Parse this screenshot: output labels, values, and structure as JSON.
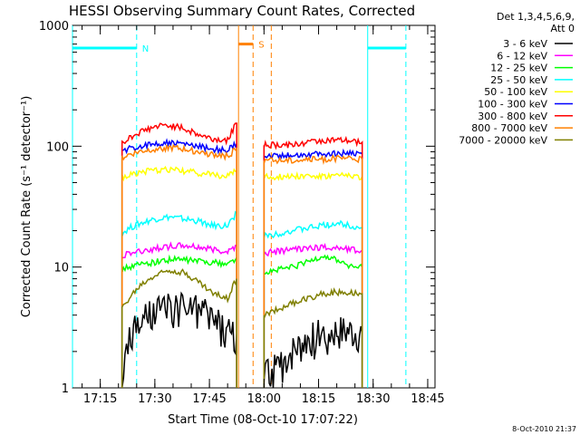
{
  "chart_data": {
    "type": "line",
    "title": "HESSI Observing Summary Count Rates, Corrected",
    "xlabel": "Start Time (08-Oct-10 17:07:22)",
    "ylabel": "Corrected Count Rate (s⁻¹ detector⁻¹)",
    "yscale": "log",
    "ylim": [
      1,
      1000
    ],
    "xlim": [
      "17:07:22",
      "18:47:00"
    ],
    "x_ticks": [
      "17:15",
      "17:30",
      "17:45",
      "18:00",
      "18:15",
      "18:30",
      "18:45"
    ],
    "y_ticks": [
      "1",
      "10",
      "100",
      "1000"
    ],
    "legend_title": [
      "Det 1,3,4,5,6,9,",
      "Att 0"
    ],
    "legend_position": "right",
    "series": [
      {
        "name": "3 - 6 keV",
        "color": "#000000",
        "segments": [
          {
            "x": [
              "17:21:00",
              "17:23:00",
              "17:26:00",
              "17:30:00",
              "17:34:00",
              "17:38:00",
              "17:42:00",
              "17:46:00",
              "17:50:00",
              "17:52:30"
            ],
            "y": [
              1.0,
              2.5,
              3.5,
              4.2,
              4.5,
              4.6,
              4.4,
              3.8,
              3.0,
              2.8
            ]
          },
          {
            "x": [
              "18:00:00",
              "18:04:00",
              "18:08:00",
              "18:12:00",
              "18:16:00",
              "18:20:00",
              "18:24:00",
              "18:27:00"
            ],
            "y": [
              1.2,
              1.5,
              2.0,
              2.5,
              2.8,
              2.9,
              2.9,
              2.8
            ]
          }
        ]
      },
      {
        "name": "6 - 12 keV",
        "color": "#ff00ff",
        "segments": [
          {
            "x": [
              "17:21:00",
              "17:23:00",
              "17:26:00",
              "17:30:00",
              "17:34:00",
              "17:38:00",
              "17:42:00",
              "17:46:00",
              "17:50:00",
              "17:52:30"
            ],
            "y": [
              12.5,
              13.0,
              13.5,
              14.2,
              14.8,
              15.0,
              14.6,
              14.0,
              13.5,
              15.0
            ]
          },
          {
            "x": [
              "18:00:00",
              "18:04:00",
              "18:08:00",
              "18:12:00",
              "18:16:00",
              "18:20:00",
              "18:24:00",
              "18:27:00"
            ],
            "y": [
              13.0,
              13.5,
              14.0,
              14.5,
              14.5,
              14.5,
              14.0,
              13.8
            ]
          }
        ]
      },
      {
        "name": "12 - 25 keV",
        "color": "#00ff00",
        "segments": [
          {
            "x": [
              "17:21:00",
              "17:23:00",
              "17:26:00",
              "17:30:00",
              "17:34:00",
              "17:38:00",
              "17:42:00",
              "17:46:00",
              "17:50:00",
              "17:52:30"
            ],
            "y": [
              9.5,
              10.0,
              10.5,
              11.0,
              11.5,
              11.5,
              11.2,
              11.0,
              10.5,
              12.0
            ]
          },
          {
            "x": [
              "18:00:00",
              "18:04:00",
              "18:08:00",
              "18:12:00",
              "18:16:00",
              "18:20:00",
              "18:24:00",
              "18:27:00"
            ],
            "y": [
              9.0,
              9.5,
              10.0,
              11.0,
              12.5,
              11.5,
              10.0,
              10.0
            ]
          }
        ]
      },
      {
        "name": "25 - 50 keV",
        "color": "#00ffff",
        "segments": [
          {
            "x": [
              "17:21:00",
              "17:23:00",
              "17:26:00",
              "17:30:00",
              "17:34:00",
              "17:38:00",
              "17:42:00",
              "17:46:00",
              "17:50:00",
              "17:52:30"
            ],
            "y": [
              19.0,
              21.0,
              23.0,
              25.0,
              26.0,
              25.0,
              24.0,
              22.0,
              22.0,
              28.0
            ]
          },
          {
            "x": [
              "18:00:00",
              "18:04:00",
              "18:08:00",
              "18:12:00",
              "18:16:00",
              "18:20:00",
              "18:24:00",
              "18:27:00"
            ],
            "y": [
              18.0,
              19.0,
              20.0,
              21.0,
              22.0,
              23.0,
              22.0,
              21.0
            ]
          }
        ]
      },
      {
        "name": "50 - 100 keV",
        "color": "#ffff00",
        "segments": [
          {
            "x": [
              "17:21:00",
              "17:23:00",
              "17:26:00",
              "17:30:00",
              "17:34:00",
              "17:38:00",
              "17:42:00",
              "17:46:00",
              "17:50:00",
              "17:52:30"
            ],
            "y": [
              55.0,
              58.0,
              61.0,
              63.0,
              64.0,
              62.0,
              60.0,
              58.0,
              57.0,
              62.0
            ]
          },
          {
            "x": [
              "18:00:00",
              "18:04:00",
              "18:08:00",
              "18:12:00",
              "18:16:00",
              "18:20:00",
              "18:24:00",
              "18:27:00"
            ],
            "y": [
              56.0,
              56.0,
              57.0,
              57.0,
              56.0,
              57.0,
              57.0,
              56.0
            ]
          }
        ]
      },
      {
        "name": "100 - 300 keV",
        "color": "#0000ff",
        "segments": [
          {
            "x": [
              "17:21:00",
              "17:23:00",
              "17:26:00",
              "17:30:00",
              "17:34:00",
              "17:38:00",
              "17:42:00",
              "17:46:00",
              "17:50:00",
              "17:52:30"
            ],
            "y": [
              88.0,
              95.0,
              100.0,
              105.0,
              107.0,
              104.0,
              100.0,
              95.0,
              92.0,
              105.0
            ]
          },
          {
            "x": [
              "18:00:00",
              "18:04:00",
              "18:08:00",
              "18:12:00",
              "18:16:00",
              "18:20:00",
              "18:24:00",
              "18:27:00"
            ],
            "y": [
              84.0,
              84.0,
              85.0,
              86.0,
              86.0,
              87.0,
              87.0,
              86.0
            ]
          }
        ]
      },
      {
        "name": "300 - 800 keV",
        "color": "#ff0000",
        "segments": [
          {
            "x": [
              "17:21:00",
              "17:23:00",
              "17:26:00",
              "17:30:00",
              "17:34:00",
              "17:38:00",
              "17:42:00",
              "17:46:00",
              "17:50:00",
              "17:52:30"
            ],
            "y": [
              105.0,
              118.0,
              132.0,
              145.0,
              150.0,
              140.0,
              125.0,
              115.0,
              112.0,
              155.0
            ]
          },
          {
            "x": [
              "18:00:00",
              "18:04:00",
              "18:08:00",
              "18:12:00",
              "18:16:00",
              "18:20:00",
              "18:24:00",
              "18:27:00"
            ],
            "y": [
              102.0,
              102.0,
              103.0,
              108.0,
              112.0,
              112.0,
              110.0,
              108.0
            ]
          }
        ]
      },
      {
        "name": "800 - 7000 keV",
        "color": "#ff8000",
        "segments": [
          {
            "x": [
              "17:21:00",
              "17:23:00",
              "17:26:00",
              "17:30:00",
              "17:34:00",
              "17:38:00",
              "17:42:00",
              "17:46:00",
              "17:50:00",
              "17:52:30"
            ],
            "y": [
              80.0,
              85.0,
              90.0,
              95.0,
              97.0,
              94.0,
              90.0,
              85.0,
              83.0,
              95.0
            ]
          },
          {
            "x": [
              "18:00:00",
              "18:04:00",
              "18:08:00",
              "18:12:00",
              "18:16:00",
              "18:20:00",
              "18:24:00",
              "18:27:00"
            ],
            "y": [
              76.0,
              77.0,
              77.0,
              78.0,
              78.0,
              79.0,
              79.0,
              78.0
            ]
          }
        ]
      },
      {
        "name": "7000 - 20000 keV",
        "color": "#808000",
        "segments": [
          {
            "x": [
              "17:21:00",
              "17:23:00",
              "17:26:00",
              "17:30:00",
              "17:34:00",
              "17:38:00",
              "17:42:00",
              "17:46:00",
              "17:50:00",
              "17:52:30"
            ],
            "y": [
              4.5,
              5.5,
              7.0,
              8.5,
              9.5,
              9.0,
              7.5,
              6.0,
              5.5,
              8.0
            ]
          },
          {
            "x": [
              "18:00:00",
              "18:04:00",
              "18:08:00",
              "18:12:00",
              "18:16:00",
              "18:20:00",
              "18:24:00",
              "18:27:00"
            ],
            "y": [
              4.0,
              4.5,
              5.0,
              5.5,
              6.0,
              6.2,
              6.2,
              6.0
            ]
          }
        ]
      }
    ],
    "annotations": [
      {
        "label": "N",
        "color": "#00ffff",
        "interval": [
          "17:07:22",
          "17:25:00"
        ],
        "level": 650,
        "line_style": "solid-start dashed-end"
      },
      {
        "label": "",
        "color": "#00ffff",
        "interval": [
          "18:28:30",
          "18:39:00"
        ],
        "level": 650,
        "line_style": "solid-start dashed-end"
      },
      {
        "label": "S",
        "color": "#ff8000",
        "interval": [
          "17:53:00",
          "17:57:00"
        ],
        "level": 700,
        "line_style": "solid-start dashed-end"
      }
    ],
    "orange_divider": "18:02:00",
    "footer_date": "8-Oct-2010 21:37"
  }
}
